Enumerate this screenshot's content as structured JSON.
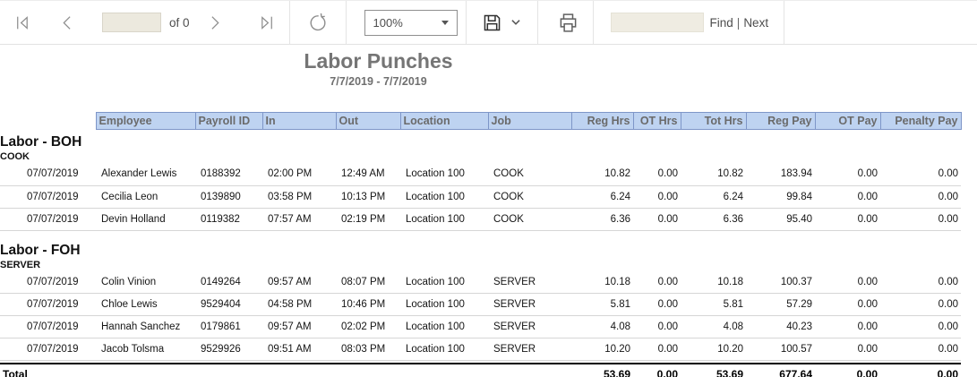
{
  "toolbar": {
    "page_input_value": "",
    "of_label": "of 0",
    "zoom_value": "100%",
    "find_input_value": "",
    "find_label": "Find",
    "separator_label": "|",
    "next_label": "Next"
  },
  "report": {
    "title": "Labor Punches",
    "subtitle": "7/7/2019 - 7/7/2019"
  },
  "table": {
    "columns": [
      {
        "key": "date",
        "label": "",
        "align": "left",
        "header": false
      },
      {
        "key": "employee",
        "label": "Employee",
        "align": "left",
        "header": true
      },
      {
        "key": "payroll-id",
        "label": "Payroll ID",
        "align": "left",
        "header": true
      },
      {
        "key": "in",
        "label": "In",
        "align": "left",
        "header": true
      },
      {
        "key": "out",
        "label": "Out",
        "align": "left",
        "header": true
      },
      {
        "key": "location",
        "label": "Location",
        "align": "left",
        "header": true
      },
      {
        "key": "job",
        "label": "Job",
        "align": "left",
        "header": true
      },
      {
        "key": "reg-hrs",
        "label": "Reg Hrs",
        "align": "right",
        "header": true
      },
      {
        "key": "ot-hrs",
        "label": "OT Hrs",
        "align": "right",
        "header": true
      },
      {
        "key": "tot-hrs",
        "label": "Tot Hrs",
        "align": "right",
        "header": true
      },
      {
        "key": "reg-pay",
        "label": "Reg Pay",
        "align": "right",
        "header": true
      },
      {
        "key": "ot-pay",
        "label": "OT Pay",
        "align": "right",
        "header": true
      },
      {
        "key": "penalty-pay",
        "label": "Penalty Pay",
        "align": "right",
        "header": true
      }
    ],
    "groups": [
      {
        "label": "Labor - BOH",
        "sublabel": "COOK",
        "rows": [
          [
            "07/07/2019",
            "Alexander Lewis",
            "0188392",
            "02:00 PM",
            "12:49 AM",
            "Location 100",
            "COOK",
            "10.82",
            "0.00",
            "10.82",
            "183.94",
            "0.00",
            "0.00"
          ],
          [
            "07/07/2019",
            "Cecilia Leon",
            "0139890",
            "03:58 PM",
            "10:13 PM",
            "Location 100",
            "COOK",
            "6.24",
            "0.00",
            "6.24",
            "99.84",
            "0.00",
            "0.00"
          ],
          [
            "07/07/2019",
            "Devin Holland",
            "0119382",
            "07:57 AM",
            "02:19 PM",
            "Location 100",
            "COOK",
            "6.36",
            "0.00",
            "6.36",
            "95.40",
            "0.00",
            "0.00"
          ]
        ]
      },
      {
        "label": "Labor - FOH",
        "sublabel": "SERVER",
        "rows": [
          [
            "07/07/2019",
            "Colin Vinion",
            "0149264",
            "09:57 AM",
            "08:07 PM",
            "Location 100",
            "SERVER",
            "10.18",
            "0.00",
            "10.18",
            "100.37",
            "0.00",
            "0.00"
          ],
          [
            "07/07/2019",
            "Chloe Lewis",
            "9529404",
            "04:58 PM",
            "10:46 PM",
            "Location 100",
            "SERVER",
            "5.81",
            "0.00",
            "5.81",
            "57.29",
            "0.00",
            "0.00"
          ],
          [
            "07/07/2019",
            "Hannah Sanchez",
            "0179861",
            "09:57 AM",
            "02:02 PM",
            "Location 100",
            "SERVER",
            "4.08",
            "0.00",
            "4.08",
            "40.23",
            "0.00",
            "0.00"
          ],
          [
            "07/07/2019",
            "Jacob Tolsma",
            "9529926",
            "09:51 AM",
            "08:03 PM",
            "Location 100",
            "SERVER",
            "10.20",
            "0.00",
            "10.20",
            "100.57",
            "0.00",
            "0.00"
          ]
        ]
      }
    ],
    "total": {
      "label": "Total",
      "values": [
        "53.69",
        "0.00",
        "53.69",
        "677.64",
        "0.00",
        "0.00"
      ]
    }
  },
  "colors": {
    "header-bg": "#bed3f1",
    "header-border": "#7e96c8",
    "header-text": "#6a6a6a",
    "title-text": "#757575",
    "row-divider": "#d6d6d6",
    "total-border": "#000000",
    "toolbar-icon": "#8f8f8f",
    "toolbar-text": "#4e4e4e",
    "input-bg": "#ece9de"
  }
}
